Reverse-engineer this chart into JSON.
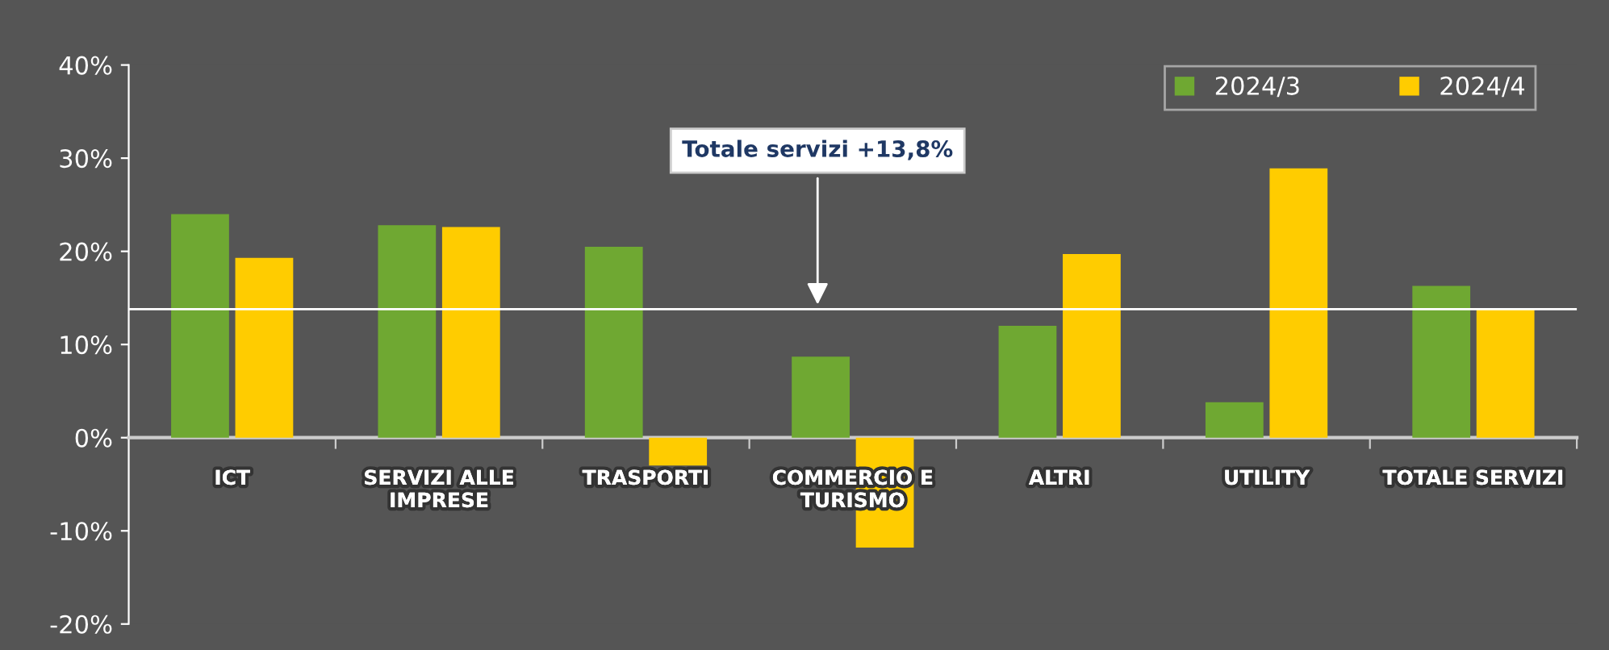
{
  "chart_data": {
    "type": "bar",
    "categories": [
      "ICT",
      "SERVIZI ALLE\nIMPRESE",
      "TRASPORTI",
      "COMMERCIO E\nTURISMO",
      "ALTRI",
      "UTILITY",
      "TOTALE SERVIZI"
    ],
    "series": [
      {
        "name": "2024/3",
        "color": "#6fa832",
        "values": [
          24.0,
          22.8,
          20.5,
          8.7,
          12.0,
          3.8,
          16.3
        ]
      },
      {
        "name": "2024/4",
        "color": "#ffcc00",
        "values": [
          19.3,
          22.6,
          -3.0,
          -11.8,
          19.7,
          28.9,
          13.8
        ]
      }
    ],
    "ylim": [
      -20,
      40
    ],
    "yticks": [
      {
        "value": -20,
        "label": "-20%"
      },
      {
        "value": -10,
        "label": "-10%"
      },
      {
        "value": 0,
        "label": "0%"
      },
      {
        "value": 10,
        "label": "10%"
      },
      {
        "value": 20,
        "label": "20%"
      },
      {
        "value": 30,
        "label": "30%"
      },
      {
        "value": 40,
        "label": "40%"
      }
    ],
    "ref_lines": [
      {
        "axis": "y",
        "value": 13.8,
        "label": "Totale servizi +13,8%",
        "color": "#ffffff"
      }
    ],
    "grid": false,
    "legend": "top right"
  }
}
